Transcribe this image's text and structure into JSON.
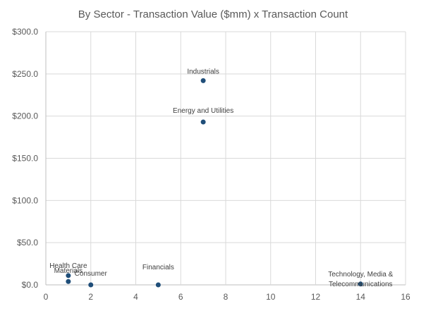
{
  "chart_data": {
    "type": "scatter",
    "title": "By Sector - Transaction Value ($mm) x Transaction Count",
    "xlabel": "",
    "ylabel": "",
    "xlim": [
      0,
      16
    ],
    "ylim": [
      0,
      300
    ],
    "xticks": [
      0,
      2,
      4,
      6,
      8,
      10,
      12,
      14,
      16
    ],
    "xtick_labels": [
      "0",
      "2",
      "4",
      "6",
      "8",
      "10",
      "12",
      "14",
      "16"
    ],
    "yticks": [
      0,
      50,
      100,
      150,
      200,
      250,
      300
    ],
    "ytick_labels": [
      "$0.0",
      "$50.0",
      "$100.0",
      "$150.0",
      "$200.0",
      "$250.0",
      "$300.0"
    ],
    "grid": true,
    "point_color": "#1f4e79",
    "points": [
      {
        "name": "Industrials",
        "label_lines": [
          "Industrials"
        ],
        "x": 7,
        "y": 242
      },
      {
        "name": "Energy and Utilities",
        "label_lines": [
          "Energy and Utilities"
        ],
        "x": 7,
        "y": 193
      },
      {
        "name": "Health Care",
        "label_lines": [
          "Health Care"
        ],
        "x": 1,
        "y": 11
      },
      {
        "name": "Materials",
        "label_lines": [
          "Materials"
        ],
        "x": 1,
        "y": 4
      },
      {
        "name": "Consumer",
        "label_lines": [
          "Consumer"
        ],
        "x": 2,
        "y": 0
      },
      {
        "name": "Financials",
        "label_lines": [
          "Financials"
        ],
        "x": 5,
        "y": 0
      },
      {
        "name": "Technology, Media & Telecommunications",
        "label_lines": [
          "Technology, Media &",
          "Telecommunications"
        ],
        "x": 14,
        "y": 1
      }
    ]
  }
}
